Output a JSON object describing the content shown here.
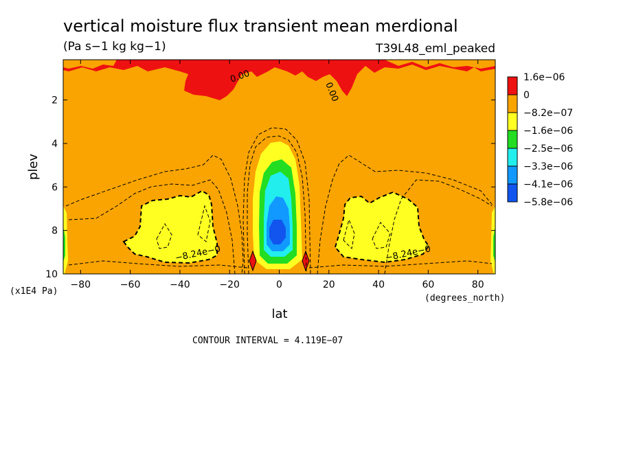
{
  "chart_data": {
    "type": "heatmap",
    "title": "vertical moisture flux transient mean merdional",
    "units": "(Pa s−1 kg kg−1)",
    "experiment": "T39L48_eml_peaked",
    "xlabel": "lat",
    "ylabel": "plev",
    "x_units": "(degrees_north)",
    "y_units": "(x1E4 Pa)",
    "xlim": [
      -87,
      87
    ],
    "ylim": [
      10,
      0.15
    ],
    "x_ticks": [
      -80,
      -60,
      -40,
      -20,
      0,
      20,
      40,
      60,
      80
    ],
    "x_tick_labels": [
      "−80",
      "−60",
      "−40",
      "−20",
      "0",
      "20",
      "40",
      "60",
      "80"
    ],
    "y_ticks": [
      2,
      4,
      6,
      8,
      10
    ],
    "y_tick_labels": [
      "2",
      "4",
      "6",
      "8",
      "10"
    ],
    "colorbar": {
      "labels": [
        "1.6e−06",
        "0",
        "−8.2e−07",
        "−1.6e−06",
        "−2.5e−06",
        "−3.3e−06",
        "−4.1e−06",
        "−5.8e−06"
      ],
      "colors": [
        "#ee1111",
        "#f9a400",
        "#ffff22",
        "#22dd22",
        "#22eeee",
        "#1199ff",
        "#1155ee"
      ]
    },
    "contour_labels": [
      "0.00",
      "0.00",
      "−8.24e−0",
      "−8.24e−0"
    ],
    "contour_interval": "CONTOUR INTERVAL = 4.119E−07",
    "grid": false
  }
}
